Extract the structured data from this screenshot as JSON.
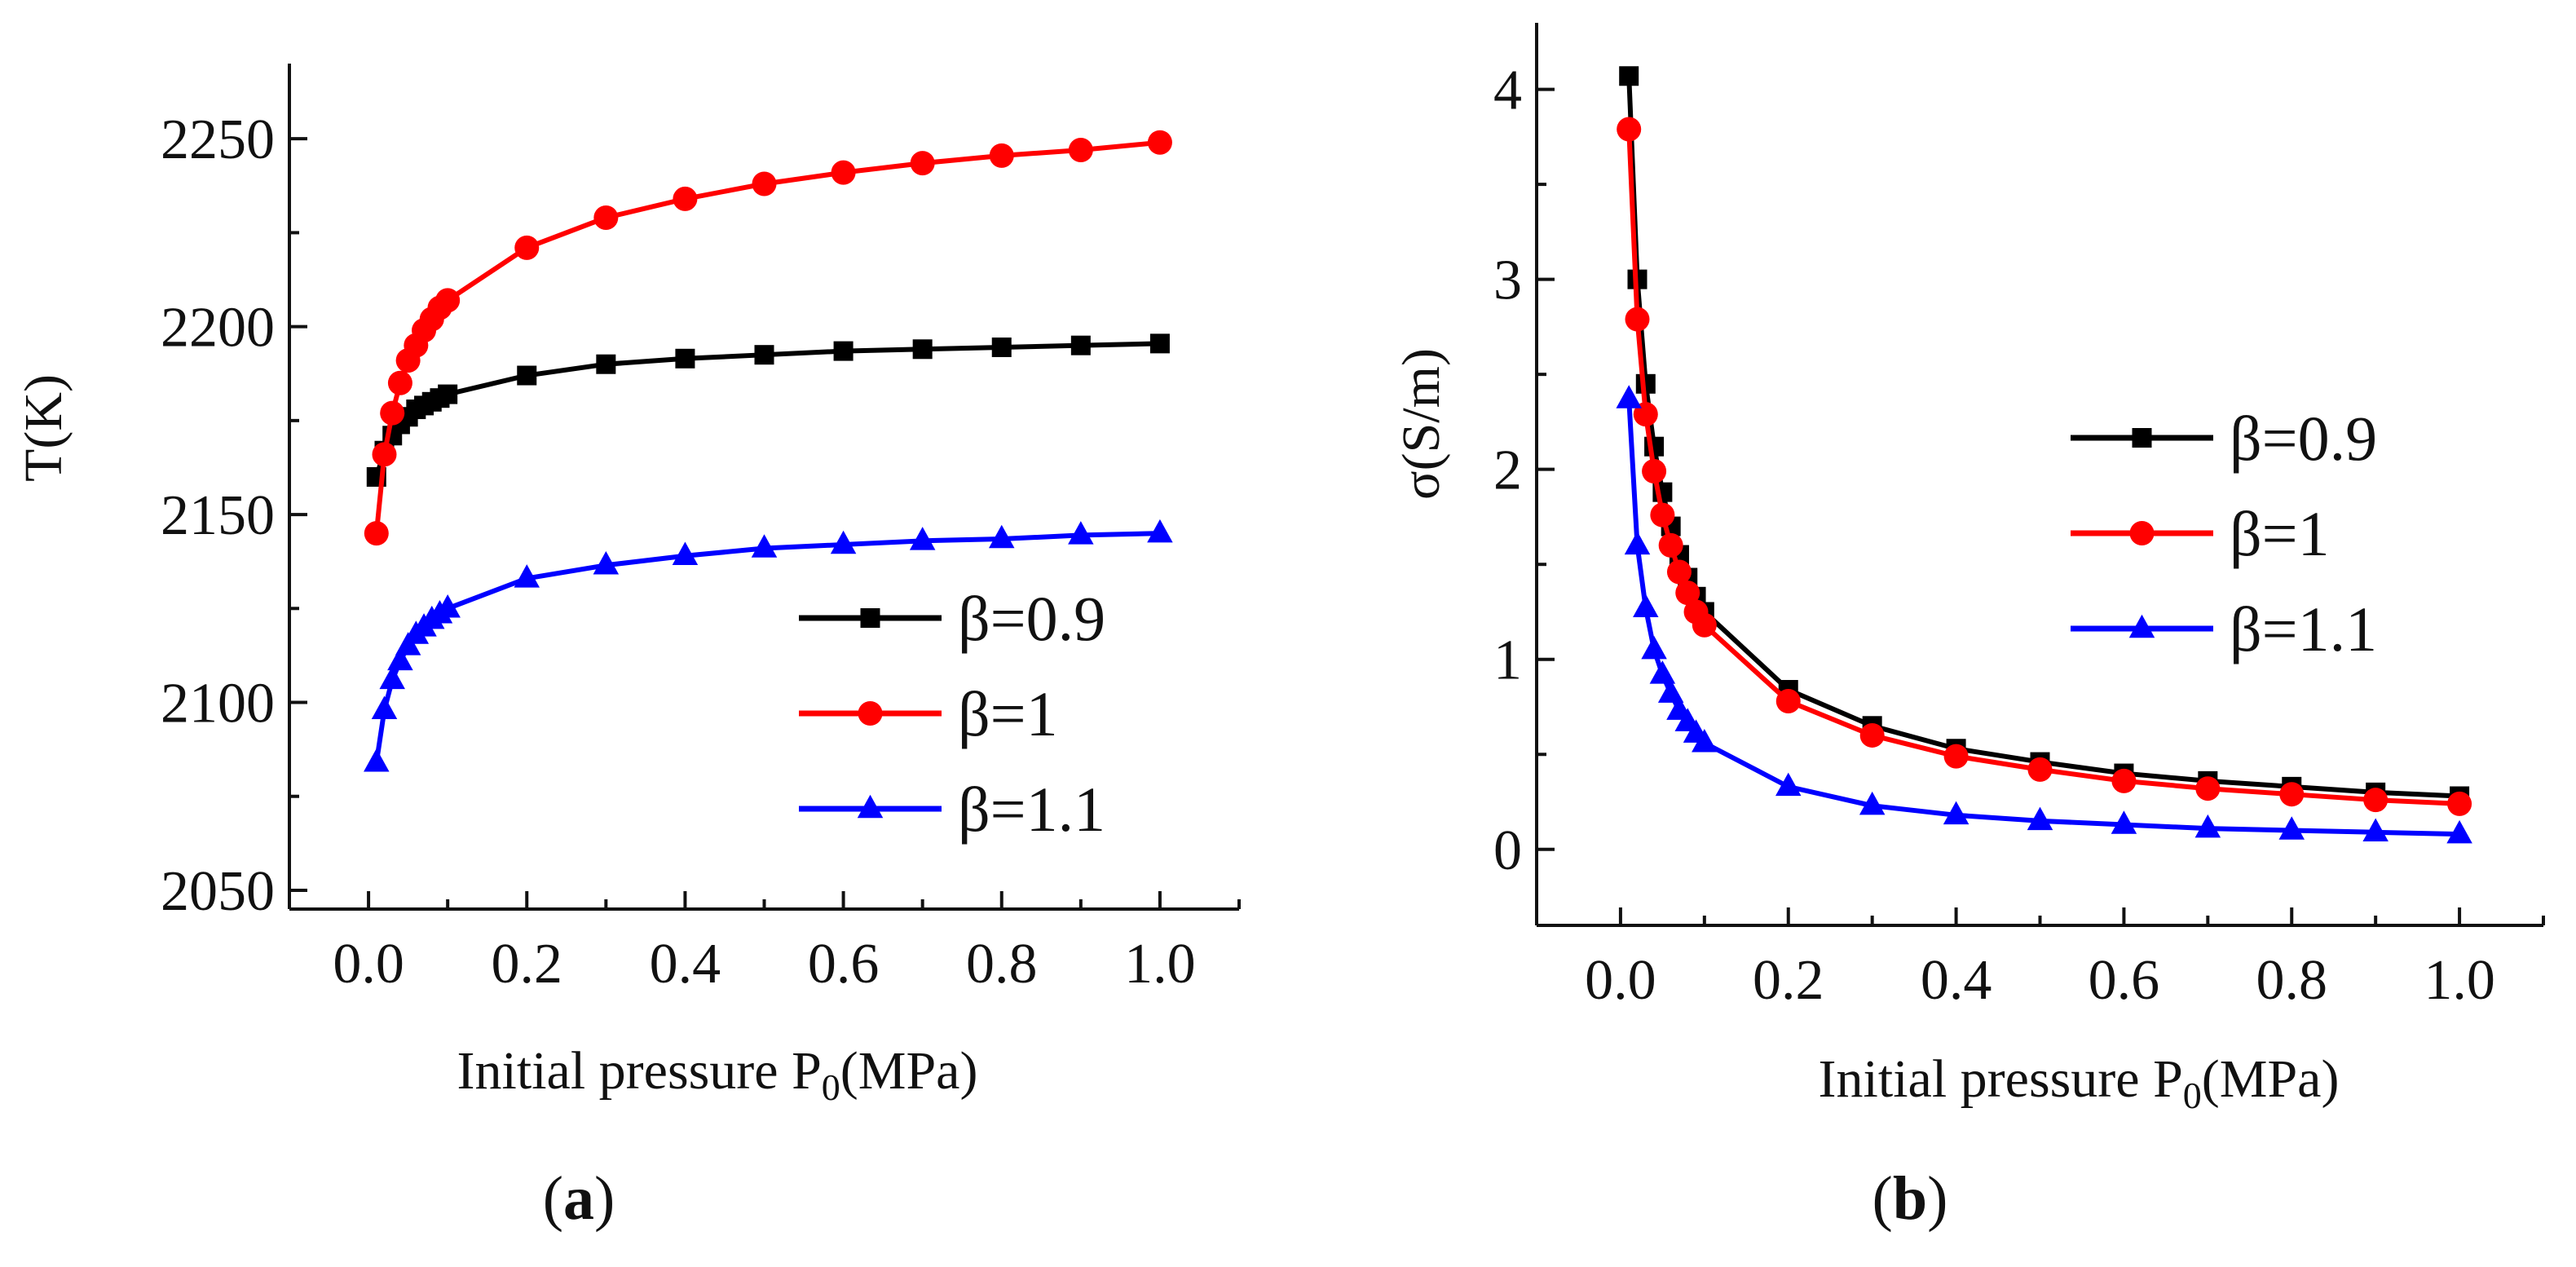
{
  "chart_data": [
    {
      "type": "line",
      "panel_label": "a",
      "ylabel": "T(K)",
      "xlabel": {
        "prefix": "Initial pressure P",
        "subscript": "0",
        "suffix": "(MPa)"
      },
      "xlim": [
        -0.1,
        1.1
      ],
      "ylim": [
        2045,
        2270
      ],
      "xticks": [
        0.0,
        0.2,
        0.4,
        0.6,
        0.8,
        1.0
      ],
      "xtick_labels": [
        "0.0",
        "0.2",
        "0.4",
        "0.6",
        "0.8",
        "1.0"
      ],
      "yticks": [
        2050,
        2100,
        2150,
        2200,
        2250
      ],
      "ytick_labels": [
        "2050",
        "2100",
        "2150",
        "2200",
        "2250"
      ],
      "legend_position": "lower-right",
      "x": [
        0.01,
        0.02,
        0.03,
        0.04,
        0.05,
        0.06,
        0.07,
        0.08,
        0.09,
        0.1,
        0.2,
        0.3,
        0.4,
        0.5,
        0.6,
        0.7,
        0.8,
        0.9,
        1.0
      ],
      "series": [
        {
          "name": "β=0.9",
          "color": "#000000",
          "marker": "square",
          "values": [
            2160,
            2167,
            2171,
            2174,
            2176,
            2178,
            2179,
            2180,
            2181,
            2182,
            2187,
            2190,
            2191.5,
            2192.5,
            2193.5,
            2194,
            2194.5,
            2195,
            2195.5
          ]
        },
        {
          "name": "β=1",
          "color": "#ff0000",
          "marker": "circle",
          "values": [
            2145,
            2166,
            2177,
            2185,
            2191,
            2195,
            2199,
            2202,
            2205,
            2207,
            2221,
            2229,
            2234,
            2238,
            2241,
            2243.5,
            2245.5,
            2247,
            2249
          ]
        },
        {
          "name": "β=1.1",
          "color": "#0000ff",
          "marker": "triangle",
          "values": [
            2084,
            2098,
            2106,
            2111,
            2115,
            2118,
            2120,
            2122,
            2123.5,
            2125,
            2133,
            2136.5,
            2139,
            2141,
            2142,
            2143,
            2143.5,
            2144.5,
            2145
          ]
        }
      ]
    },
    {
      "type": "line",
      "panel_label": "b",
      "ylabel": "σ(S/m)",
      "xlabel": {
        "prefix": "Initial pressure P",
        "subscript": "0",
        "suffix": "(MPa)"
      },
      "xlim": [
        -0.1,
        1.1
      ],
      "ylim": [
        -0.4,
        4.35
      ],
      "xticks": [
        0.0,
        0.2,
        0.4,
        0.6,
        0.8,
        1.0
      ],
      "xtick_labels": [
        "0.0",
        "0.2",
        "0.4",
        "0.6",
        "0.8",
        "1.0"
      ],
      "yticks": [
        0,
        1,
        2,
        3,
        4
      ],
      "ytick_labels": [
        "0",
        "1",
        "2",
        "3",
        "4"
      ],
      "legend_position": "upper-right",
      "x": [
        0.01,
        0.02,
        0.03,
        0.04,
        0.05,
        0.06,
        0.07,
        0.08,
        0.09,
        0.1,
        0.2,
        0.3,
        0.4,
        0.5,
        0.6,
        0.7,
        0.8,
        0.9,
        1.0
      ],
      "series": [
        {
          "name": "β=0.9",
          "color": "#000000",
          "marker": "square",
          "values": [
            4.07,
            3.0,
            2.45,
            2.12,
            1.88,
            1.7,
            1.55,
            1.43,
            1.33,
            1.25,
            0.84,
            0.65,
            0.53,
            0.46,
            0.4,
            0.36,
            0.33,
            0.3,
            0.28
          ]
        },
        {
          "name": "β=1",
          "color": "#ff0000",
          "marker": "circle",
          "values": [
            3.79,
            2.79,
            2.29,
            1.99,
            1.76,
            1.6,
            1.46,
            1.35,
            1.25,
            1.18,
            0.78,
            0.6,
            0.49,
            0.42,
            0.36,
            0.32,
            0.29,
            0.26,
            0.24
          ]
        },
        {
          "name": "β=1.1",
          "color": "#0000ff",
          "marker": "triangle",
          "values": [
            2.37,
            1.6,
            1.27,
            1.05,
            0.92,
            0.82,
            0.73,
            0.67,
            0.61,
            0.56,
            0.33,
            0.23,
            0.18,
            0.15,
            0.13,
            0.11,
            0.1,
            0.09,
            0.08
          ]
        }
      ]
    }
  ]
}
